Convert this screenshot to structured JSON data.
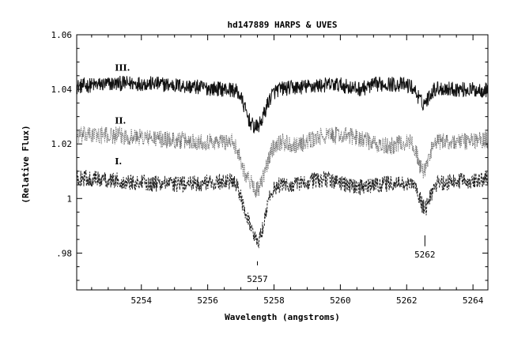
{
  "chart_data": {
    "type": "line",
    "title": "hd147889 HARPS & UVES",
    "xlabel": "Wavelength (angstroms)",
    "ylabel": "(Relative Flux)",
    "xlim": [
      5252.05,
      5264.45
    ],
    "ylim": [
      0.9665,
      1.06
    ],
    "x_ticks": [
      5254,
      5256,
      5258,
      5260,
      5262,
      5264
    ],
    "x_tick_labels": [
      "5254",
      "5256",
      "5258",
      "5260",
      "5262",
      "5264"
    ],
    "y_ticks": [
      0.98,
      1.0,
      1.02,
      1.04,
      1.06
    ],
    "y_tick_labels": [
      ".98",
      "1",
      "1.02",
      "1.04",
      "1.06"
    ],
    "grid": false,
    "legend": "none",
    "series": [
      {
        "name": "III.",
        "style": "solid",
        "color": "#111111",
        "baseline": 1.041,
        "noise": 0.0028,
        "features": [
          {
            "center": 5257.5,
            "depth": 0.013,
            "width": 0.23
          },
          {
            "center": 5257.2,
            "depth": 0.004,
            "width": 0.15
          },
          {
            "center": 5262.5,
            "depth": 0.006,
            "width": 0.16
          },
          {
            "center": 5260.55,
            "depth": 0.002,
            "width": 0.3
          }
        ]
      },
      {
        "name": "II.",
        "style": "dotted",
        "color": "#666666",
        "baseline": 1.022,
        "noise": 0.0032,
        "features": [
          {
            "center": 5257.5,
            "depth": 0.018,
            "width": 0.25
          },
          {
            "center": 5257.1,
            "depth": 0.006,
            "width": 0.15
          },
          {
            "center": 5262.5,
            "depth": 0.011,
            "width": 0.15
          },
          {
            "center": 5258.7,
            "depth": 0.003,
            "width": 0.4
          },
          {
            "center": 5261.3,
            "depth": 0.003,
            "width": 0.4
          }
        ]
      },
      {
        "name": "I.",
        "style": "dashed",
        "color": "#222222",
        "baseline": 1.0065,
        "noise": 0.003,
        "features": [
          {
            "center": 5257.5,
            "depth": 0.022,
            "width": 0.22
          },
          {
            "center": 5257.1,
            "depth": 0.006,
            "width": 0.15
          },
          {
            "center": 5262.55,
            "depth": 0.009,
            "width": 0.15
          },
          {
            "center": 5258.4,
            "depth": 0.003,
            "width": 0.5
          },
          {
            "center": 5260.5,
            "depth": 0.002,
            "width": 0.4
          }
        ]
      }
    ],
    "series_labels": [
      {
        "text": "III.",
        "x": 5253.2,
        "y": 1.0468
      },
      {
        "text": "II.",
        "x": 5253.2,
        "y": 1.0275
      },
      {
        "text": "I.",
        "x": 5253.2,
        "y": 1.0125
      }
    ],
    "annotations": [
      {
        "text": "5257",
        "x": 5257.5,
        "y": 0.9705,
        "marker_from": 0.977,
        "marker_to": 0.9755
      },
      {
        "text": "5262",
        "x": 5262.55,
        "y": 0.9795,
        "marker_from": 0.9865,
        "marker_to": 0.9825
      }
    ]
  }
}
